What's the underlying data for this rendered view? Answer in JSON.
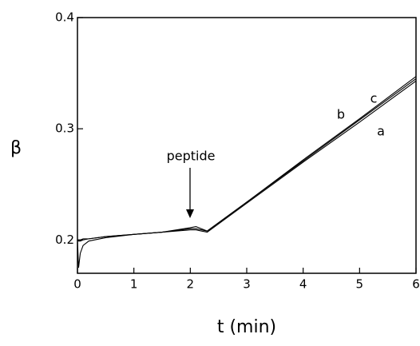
{
  "chart_data": {
    "type": "line",
    "xlabel": "t  (min)",
    "ylabel": "β",
    "annotation": "peptide",
    "x": [
      0,
      0.02,
      0.05,
      0.1,
      0.2,
      0.5,
      1,
      1.5,
      2,
      2.1,
      2.3,
      3,
      4,
      5,
      6
    ],
    "series": [
      {
        "name": "a",
        "color": "#000000",
        "values": [
          0.2,
          0.199,
          0.199,
          0.2,
          0.201,
          0.203,
          0.205,
          0.207,
          0.209,
          0.209,
          0.207,
          0.233,
          0.27,
          0.306,
          0.343
        ]
      },
      {
        "name": "b",
        "color": "#000000",
        "values": [
          0.2,
          0.2,
          0.2,
          0.201,
          0.201,
          0.203,
          0.205,
          0.207,
          0.21,
          0.21,
          0.208,
          0.234,
          0.271,
          0.308,
          0.345
        ]
      },
      {
        "name": "c",
        "color": "#000000",
        "values": [
          0.2,
          0.175,
          0.188,
          0.195,
          0.199,
          0.202,
          0.205,
          0.207,
          0.211,
          0.212,
          0.208,
          0.234,
          0.272,
          0.309,
          0.347
        ]
      }
    ],
    "xlim": [
      0,
      6
    ],
    "xticks": [
      0,
      1,
      2,
      3,
      4,
      5,
      6
    ],
    "ylim": [
      0.17,
      0.4
    ],
    "yticks": [
      0.2,
      0.3,
      0.4
    ],
    "grid": false
  }
}
